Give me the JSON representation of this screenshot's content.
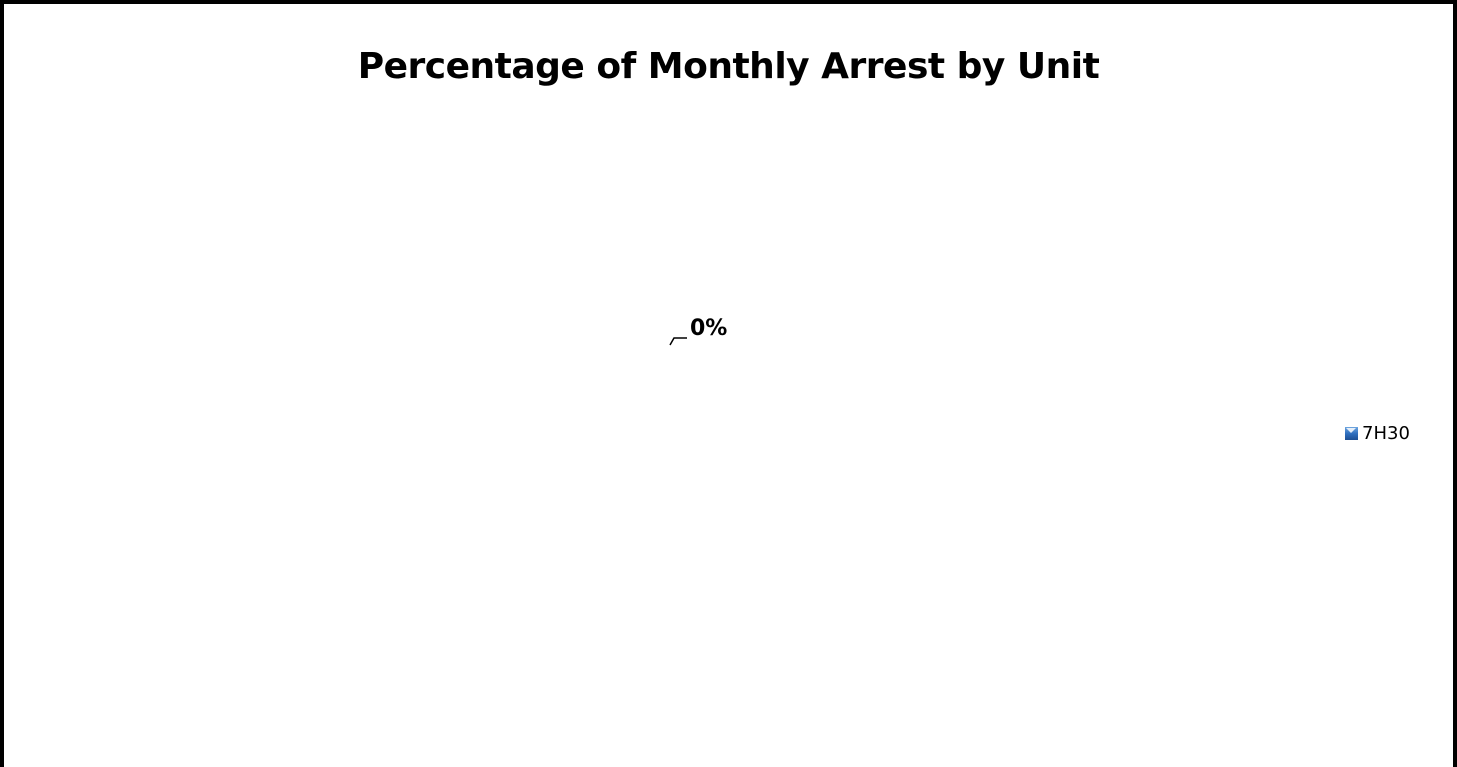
{
  "chart_data": {
    "type": "pie",
    "title": "Percentage of Monthly Arrest by Unit",
    "categories": [
      "7H30"
    ],
    "values": [
      0
    ],
    "data_labels": [
      "0%"
    ],
    "legend": {
      "placement": "right",
      "entries": [
        "7H30"
      ]
    },
    "colors": {
      "7H30": "#2f6fbf",
      "frame_border": "#000000",
      "background": "#ffffff"
    }
  }
}
